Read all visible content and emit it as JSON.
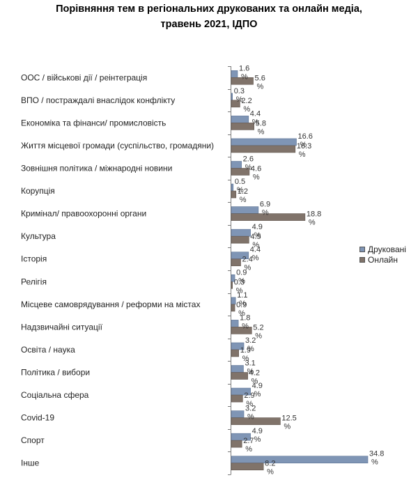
{
  "chart_data": {
    "type": "bar",
    "orientation": "horizontal",
    "title": [
      "Порівняння тем в регіональних друкованих та онлайн медіа,",
      "травень 2021, ІДПО"
    ],
    "categories": [
      "ООС / військові дії / реінтеграція",
      "ВПО / постраждалі  внаслідок конфлікту",
      "Економіка та фінанси/ промисловість",
      "Життя місцевої громади (суспільство, громадяни)",
      "Зовнішня політика / міжнародні новини",
      "Корупція",
      "Кримінал/ правоохоронні органи",
      "Культура",
      "Історія",
      "Релігія",
      "Місцеве самоврядування / реформи на містах",
      "Надзвичайні ситуації",
      "Освіта / наука",
      "Політика / вибори",
      "Соціальна сфера",
      "Covid-19",
      "Спорт",
      "Інше"
    ],
    "series": [
      {
        "name": "Друковані",
        "color": "#7f95b5",
        "values": [
          1.6,
          0.3,
          4.4,
          16.6,
          2.6,
          0.5,
          6.9,
          4.9,
          4.4,
          0.9,
          1.1,
          1.8,
          3.2,
          3.1,
          4.9,
          3.2,
          4.9,
          34.8
        ]
      },
      {
        "name": "Онлайн",
        "color": "#80736a",
        "values": [
          5.6,
          2.2,
          5.8,
          16.3,
          4.6,
          1.2,
          18.8,
          4.5,
          2.4,
          0.3,
          0.9,
          5.2,
          1.9,
          4.2,
          2.9,
          12.5,
          2.7,
          8.2
        ]
      }
    ],
    "value_suffix": "%",
    "xlim": [
      0,
      35
    ],
    "legend_position": "right",
    "grid": false
  }
}
